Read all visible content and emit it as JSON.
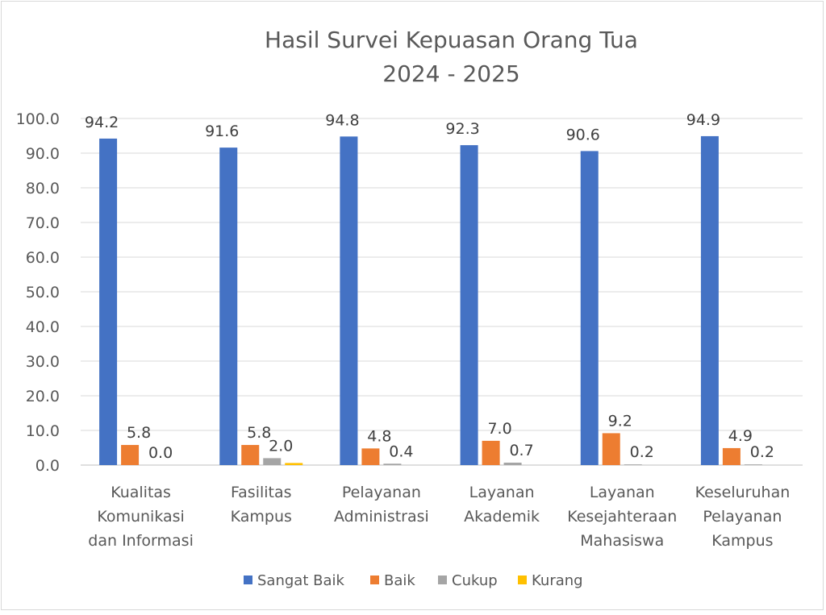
{
  "chart_data": {
    "type": "bar",
    "title": [
      "Hasil Survei Kepuasan Orang Tua",
      "2024 - 2025"
    ],
    "categories": [
      [
        "Kualitas",
        "Komunikasi",
        "dan Informasi"
      ],
      [
        "Fasilitas",
        "Kampus"
      ],
      [
        "Pelayanan",
        "Administrasi"
      ],
      [
        "Layanan",
        "Akademik"
      ],
      [
        "Layanan",
        "Kesejahteraan",
        "Mahasiswa"
      ],
      [
        "Keseluruhan",
        "Pelayanan",
        "Kampus"
      ]
    ],
    "series": [
      {
        "name": "Sangat Baik",
        "color": "#4472C4",
        "values": [
          94.2,
          91.6,
          94.8,
          92.3,
          90.6,
          94.9
        ],
        "labels": [
          "94.2",
          "91.6",
          "94.8",
          "92.3",
          "90.6",
          "94.9"
        ]
      },
      {
        "name": "Baik",
        "color": "#ED7D31",
        "values": [
          5.8,
          5.8,
          4.8,
          7.0,
          9.2,
          4.9
        ],
        "labels": [
          "5.8",
          "5.8",
          "4.8",
          "7.0",
          "9.2",
          "4.9"
        ]
      },
      {
        "name": "Cukup",
        "color": "#A5A5A5",
        "values": [
          0.0,
          2.0,
          0.4,
          0.7,
          0.2,
          0.2
        ],
        "labels": [
          "0.0",
          "2.0",
          "0.4",
          "0.7",
          "0.2",
          "0.2"
        ]
      },
      {
        "name": "Kurang",
        "color": "#FFC000",
        "values": [
          0,
          0.6,
          0,
          0,
          0,
          0
        ],
        "labels": [
          "",
          "",
          "",
          "",
          "",
          ""
        ]
      }
    ],
    "yticks": [
      "0.0",
      "10.0",
      "20.0",
      "30.0",
      "40.0",
      "50.0",
      "60.0",
      "70.0",
      "80.0",
      "90.0",
      "100.0"
    ],
    "ylim": [
      0,
      100
    ],
    "grid": true,
    "legend": "bottom",
    "xlabel": "",
    "ylabel": ""
  }
}
